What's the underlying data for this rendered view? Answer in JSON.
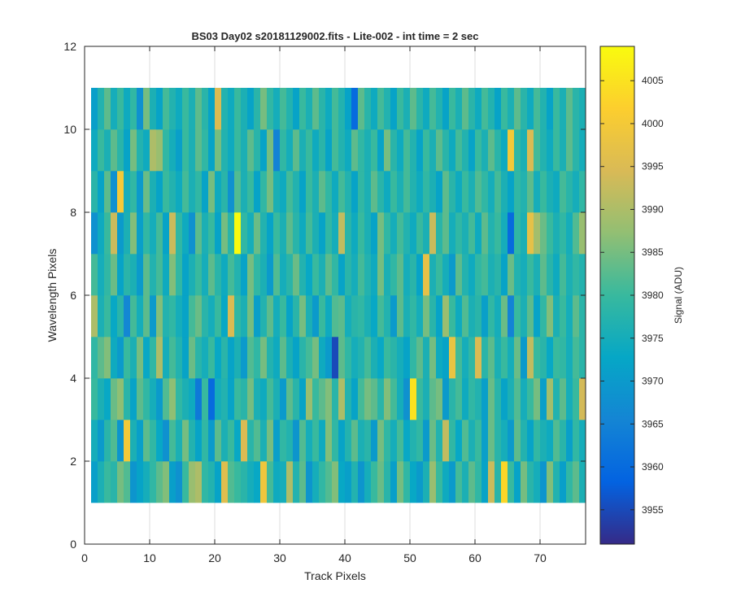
{
  "chart_data": {
    "type": "heatmap",
    "title": "BS03 Day02  s20181129002.fits - Lite-002 - int time = 2 sec",
    "xlabel": "Track Pixels",
    "ylabel": "Wavelength Pixels",
    "xlim": [
      0,
      77
    ],
    "ylim": [
      0,
      12
    ],
    "x_ticks": [
      0,
      10,
      20,
      30,
      40,
      50,
      60,
      70
    ],
    "y_ticks": [
      0,
      2,
      4,
      6,
      8,
      10,
      12
    ],
    "grid": true,
    "columns": 76,
    "rows": 10,
    "cell_x_start": 1,
    "cell_y_start": 1,
    "colormap": "parula",
    "colorbar": {
      "label": "Signal (ADU)",
      "range": [
        3951,
        4009
      ],
      "ticks": [
        3955,
        3960,
        3965,
        3970,
        3975,
        3980,
        3985,
        3990,
        3995,
        4000,
        4005
      ],
      "placement": "right"
    },
    "values_rows_bottom_to_top": [
      [
        3971,
        3976,
        3980,
        3978,
        3985,
        3982,
        3969,
        3972,
        3975,
        3979,
        3983,
        3986,
        3971,
        3968,
        3980,
        3988,
        3990,
        3979,
        3977,
        3972,
        3996,
        3982,
        3980,
        3978,
        3975,
        3973,
        3999,
        3981,
        3974,
        3975,
        3990,
        3977,
        3983,
        3969,
        3975,
        3979,
        3982,
        3986,
        3973,
        3971,
        3977,
        3969,
        3975,
        3980,
        3984,
        3978,
        3971,
        3985,
        3979,
        3973,
        3970,
        3976,
        3988,
        3980,
        3974,
        3970,
        3981,
        3976,
        3983,
        3979,
        3972,
        3993,
        3978,
        4003,
        3980,
        3972,
        3985,
        3978,
        3975,
        3969,
        3986,
        3977,
        3971,
        3979,
        3983,
        3976
      ],
      [
        3975,
        3970,
        3978,
        3982,
        3969,
        4000,
        3976,
        3971,
        3983,
        3979,
        3973,
        3968,
        3981,
        3976,
        3985,
        3977,
        3972,
        3979,
        3970,
        3983,
        3976,
        3980,
        3973,
        3995,
        3978,
        3982,
        3976,
        3985,
        3971,
        3979,
        3977,
        3969,
        3982,
        3975,
        3980,
        3974,
        3986,
        3979,
        3972,
        3977,
        3983,
        3976,
        3978,
        3970,
        3985,
        3979,
        3975,
        3981,
        3973,
        3977,
        3979,
        3970,
        3984,
        3977,
        3992,
        3979,
        3973,
        3982,
        3976,
        3980,
        3971,
        3984,
        3978,
        3975,
        3970,
        3983,
        3977,
        3972,
        3979,
        3976,
        3974,
        3982,
        3978,
        3971,
        3979,
        3975
      ],
      [
        3980,
        3976,
        3973,
        3984,
        3987,
        3978,
        3972,
        3983,
        3979,
        3975,
        3970,
        3982,
        3987,
        3979,
        3976,
        3974,
        3963,
        3980,
        3960,
        3975,
        3977,
        3972,
        3980,
        3978,
        3985,
        3976,
        3974,
        3981,
        3976,
        3970,
        3983,
        3978,
        3972,
        3988,
        3980,
        3983,
        3986,
        3978,
        3990,
        3977,
        3972,
        3981,
        3985,
        3983,
        3978,
        3986,
        3981,
        3975,
        3968,
        4005,
        3980,
        3976,
        3983,
        3985,
        3970,
        3978,
        3981,
        3974,
        3979,
        3977,
        3971,
        3984,
        3978,
        3972,
        3976,
        3982,
        3975,
        3980,
        3985,
        3971,
        3989,
        3977,
        3983,
        3975,
        3980,
        3994
      ],
      [
        3979,
        3983,
        3986,
        3974,
        3970,
        3980,
        3976,
        3985,
        3973,
        3979,
        3990,
        3975,
        3981,
        3977,
        3972,
        3984,
        3978,
        3975,
        3980,
        3973,
        3978,
        3972,
        3976,
        3970,
        3982,
        3979,
        3985,
        3977,
        3974,
        3983,
        3976,
        3972,
        3978,
        3981,
        3985,
        3974,
        3970,
        3955,
        3983,
        3979,
        3975,
        3977,
        3981,
        3976,
        3973,
        3980,
        3978,
        3975,
        3972,
        3979,
        3983,
        3976,
        3985,
        3974,
        3972,
        3998,
        3981,
        3975,
        3979,
        3995,
        3978,
        3983,
        3976,
        3980,
        3975,
        3984,
        3970,
        3992,
        3980,
        3978,
        3973,
        3980,
        3979,
        3975,
        3981,
        3978
      ],
      [
        3990,
        3976,
        3980,
        3973,
        3978,
        3966,
        3981,
        3975,
        3983,
        3970,
        3986,
        3977,
        3979,
        3975,
        3972,
        3981,
        3984,
        3978,
        3975,
        3980,
        3973,
        3995,
        3979,
        3976,
        3985,
        3971,
        3977,
        3983,
        3975,
        3980,
        3972,
        3978,
        3985,
        3976,
        3970,
        3980,
        3974,
        3982,
        3983,
        3975,
        3978,
        3979,
        3976,
        3973,
        3981,
        3977,
        3970,
        3983,
        3976,
        3979,
        3975,
        3985,
        3978,
        3972,
        3988,
        3980,
        3974,
        3982,
        3976,
        3978,
        3971,
        3979,
        3975,
        3984,
        3965,
        3980,
        3976,
        3983,
        3972,
        3979,
        3986,
        3976,
        3980,
        3975,
        3983,
        3978
      ],
      [
        3981,
        3975,
        3979,
        3984,
        3972,
        3978,
        3976,
        3970,
        3983,
        3977,
        3981,
        3974,
        3986,
        3979,
        3972,
        3976,
        3980,
        3975,
        3983,
        3978,
        3974,
        3981,
        3977,
        3972,
        3985,
        3979,
        3976,
        3970,
        3982,
        3975,
        3978,
        3984,
        3977,
        3973,
        3980,
        3976,
        3983,
        3979,
        3972,
        3978,
        3975,
        3981,
        3977,
        3974,
        3985,
        3976,
        3979,
        3983,
        3975,
        3978,
        3972,
        3997,
        3976,
        3980,
        3975,
        3970,
        3983,
        3977,
        3974,
        3979,
        3981,
        3976,
        3978,
        3972,
        3984,
        3977,
        3975,
        3980,
        3976,
        3983,
        3978,
        3974,
        3981,
        3976,
        3979,
        3977
      ],
      [
        3968,
        3974,
        3980,
        3993,
        3970,
        3976,
        3986,
        3971,
        3979,
        3975,
        3981,
        3972,
        3993,
        3979,
        3974,
        3968,
        3983,
        3976,
        3980,
        3972,
        3985,
        3978,
        4009,
        3979,
        3975,
        3984,
        3977,
        3972,
        3980,
        3976,
        3983,
        3978,
        3974,
        3981,
        3976,
        3972,
        3979,
        3975,
        3992,
        3978,
        3974,
        3980,
        3976,
        3972,
        3985,
        3979,
        3975,
        3981,
        3977,
        3974,
        3980,
        3976,
        3993,
        3978,
        3983,
        3975,
        3979,
        3976,
        3981,
        3974,
        3983,
        3977,
        3980,
        3975,
        3960,
        3979,
        3976,
        3997,
        3989,
        3984,
        3980,
        3976,
        3979,
        3975,
        3982,
        3988
      ],
      [
        3978,
        3972,
        3983,
        3968,
        4000,
        3975,
        3979,
        3970,
        3984,
        3976,
        3972,
        3980,
        3977,
        3974,
        3981,
        3976,
        3979,
        3972,
        3985,
        3974,
        3978,
        3968,
        3982,
        3976,
        3980,
        3972,
        3979,
        3985,
        3976,
        3974,
        3981,
        3977,
        3972,
        3980,
        3976,
        3983,
        3979,
        3974,
        3981,
        3977,
        3972,
        3979,
        3976,
        3983,
        3978,
        3974,
        3980,
        3976,
        3981,
        3977,
        3974,
        3979,
        3976,
        3972,
        3983,
        3978,
        3974,
        3980,
        3976,
        3982,
        3979,
        3975,
        3981,
        3976,
        3972,
        3979,
        3977,
        3983,
        3975,
        3980,
        3976,
        3974,
        3981,
        3978,
        3975,
        3979
      ],
      [
        3974,
        3980,
        3976,
        3983,
        3978,
        3972,
        3985,
        3977,
        3974,
        3990,
        3988,
        3979,
        3975,
        3971,
        3980,
        3976,
        3983,
        3979,
        3972,
        3985,
        3977,
        3974,
        3980,
        3976,
        3983,
        3978,
        3972,
        3985,
        3965,
        3979,
        3975,
        3983,
        3976,
        3980,
        3974,
        3978,
        3972,
        3981,
        3977,
        3974,
        3983,
        3979,
        3976,
        3980,
        3972,
        3985,
        3978,
        3974,
        3981,
        3977,
        3972,
        3980,
        3976,
        3983,
        3978,
        3974,
        3981,
        3977,
        3972,
        3980,
        3976,
        3983,
        3978,
        3974,
        4000,
        3979,
        3976,
        3995,
        3981,
        3977,
        3974,
        3980,
        3976,
        3983,
        3978,
        3975
      ],
      [
        3971,
        3977,
        3983,
        3975,
        3980,
        3974,
        3979,
        3968,
        3985,
        3976,
        3972,
        3981,
        3977,
        3974,
        3980,
        3976,
        3983,
        3978,
        3972,
        3995,
        3977,
        3974,
        3980,
        3976,
        3972,
        3978,
        3985,
        3979,
        3975,
        3981,
        3977,
        3972,
        3980,
        3976,
        3983,
        3978,
        3974,
        3981,
        3977,
        3972,
        3960,
        3983,
        3978,
        3974,
        3981,
        3977,
        3972,
        3980,
        3976,
        3983,
        3978,
        3974,
        3981,
        3977,
        3972,
        3980,
        3976,
        3983,
        3978,
        3974,
        3981,
        3977,
        3972,
        3980,
        3976,
        3983,
        3978,
        3974,
        3981,
        3977,
        3972,
        3980,
        3976,
        3983,
        3978,
        3976
      ]
    ]
  }
}
